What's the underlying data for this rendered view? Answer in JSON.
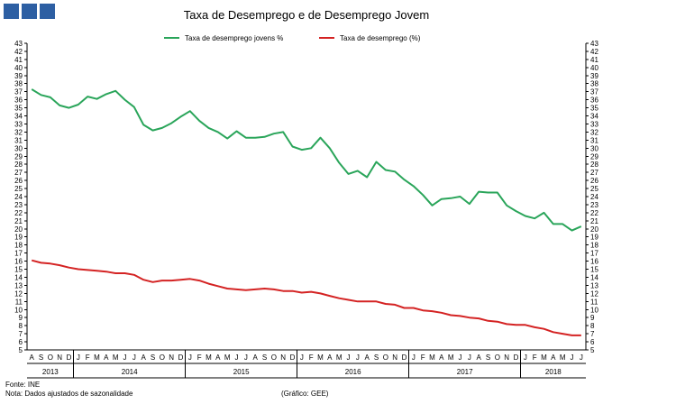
{
  "colors": {
    "youth": "#2aa55a",
    "total": "#d42323",
    "logo": "#2d5fa3"
  },
  "footer": {
    "source": "Fonte: INE",
    "note": "Nota: Dados ajustados de sazonalidade",
    "credit": "(Gráfico: GEE)"
  },
  "chart_data": {
    "type": "line",
    "title": "Taxa de Desemprego  e de Desemprego  Jovem",
    "xlabel": "",
    "ylabel": "",
    "ylim": [
      5,
      43
    ],
    "y_ticks": [
      5,
      6,
      7,
      8,
      9,
      10,
      11,
      12,
      13,
      14,
      15,
      16,
      17,
      18,
      19,
      20,
      21,
      22,
      23,
      24,
      25,
      26,
      27,
      28,
      29,
      30,
      31,
      32,
      33,
      34,
      35,
      36,
      37,
      38,
      39,
      40,
      41,
      42,
      43
    ],
    "secondary_y_axis": true,
    "legend_position": "top-center",
    "x": [
      "A",
      "S",
      "O",
      "N",
      "D",
      "J",
      "F",
      "M",
      "A",
      "M",
      "J",
      "J",
      "A",
      "S",
      "O",
      "N",
      "D",
      "J",
      "F",
      "M",
      "A",
      "M",
      "J",
      "J",
      "A",
      "S",
      "O",
      "N",
      "D",
      "J",
      "F",
      "M",
      "A",
      "M",
      "J",
      "J",
      "A",
      "S",
      "O",
      "N",
      "D",
      "J",
      "F",
      "M",
      "A",
      "M",
      "J",
      "J",
      "A",
      "S",
      "O",
      "N",
      "D",
      "J",
      "F",
      "M",
      "A",
      "M",
      "J",
      "J"
    ],
    "years": [
      {
        "label": "2013",
        "start": 0,
        "end": 4
      },
      {
        "label": "2014",
        "start": 5,
        "end": 16
      },
      {
        "label": "2015",
        "start": 17,
        "end": 28
      },
      {
        "label": "2016",
        "start": 29,
        "end": 40
      },
      {
        "label": "2017",
        "start": 41,
        "end": 52
      },
      {
        "label": "2018",
        "start": 53,
        "end": 59
      }
    ],
    "series": [
      {
        "name": "Taxa de desemprego jovens %",
        "values": [
          37.3,
          36.6,
          36.3,
          35.3,
          35.0,
          35.4,
          36.4,
          36.1,
          36.7,
          37.1,
          36.0,
          35.1,
          32.9,
          32.2,
          32.5,
          33.1,
          33.9,
          34.6,
          33.4,
          32.5,
          32.0,
          31.2,
          32.1,
          31.3,
          31.3,
          31.4,
          31.8,
          32.0,
          30.2,
          29.8,
          30.0,
          31.3,
          30.0,
          28.2,
          26.8,
          27.2,
          26.4,
          28.3,
          27.3,
          27.1,
          26.1,
          25.3,
          24.2,
          22.9,
          23.7,
          23.8,
          24.0,
          23.1,
          24.6,
          24.5,
          24.5,
          22.9,
          22.2,
          21.6,
          21.3,
          22.0,
          20.6,
          20.6,
          19.8,
          20.3
        ]
      },
      {
        "name": "Taxa de desemprego (%)",
        "values": [
          16.1,
          15.8,
          15.7,
          15.5,
          15.2,
          15.0,
          14.9,
          14.8,
          14.7,
          14.5,
          14.5,
          14.3,
          13.7,
          13.4,
          13.6,
          13.6,
          13.7,
          13.8,
          13.6,
          13.2,
          12.9,
          12.6,
          12.5,
          12.4,
          12.5,
          12.6,
          12.5,
          12.3,
          12.3,
          12.1,
          12.2,
          12.0,
          11.7,
          11.4,
          11.2,
          11.0,
          11.0,
          11.0,
          10.7,
          10.6,
          10.2,
          10.2,
          9.9,
          9.8,
          9.6,
          9.3,
          9.2,
          9.0,
          8.9,
          8.6,
          8.5,
          8.2,
          8.1,
          8.1,
          7.8,
          7.6,
          7.2,
          7.0,
          6.8,
          6.8
        ]
      }
    ]
  }
}
